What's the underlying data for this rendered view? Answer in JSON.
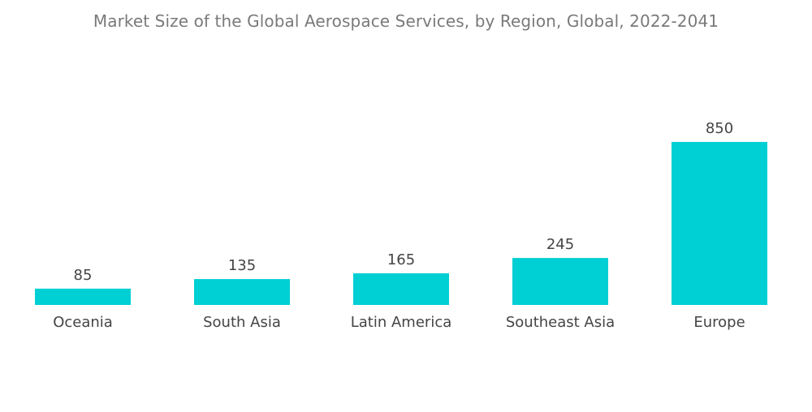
{
  "chart_data": {
    "type": "bar",
    "title": "Market Size of the Global Aerospace Services, by Region, Global, 2022-2041",
    "categories": [
      "Oceania",
      "South Asia",
      "Latin America",
      "Southeast Asia",
      "Europe"
    ],
    "values": [
      85,
      135,
      165,
      245,
      850
    ],
    "value_labels": [
      "85",
      "135",
      "165",
      "245",
      "850"
    ],
    "xlabel": "",
    "ylabel": "",
    "ylim": [
      0,
      850
    ],
    "grid": false,
    "legend": "none",
    "bar_color": "#00cfd3",
    "label_color": "#444444",
    "title_color": "#7a7a7a"
  }
}
